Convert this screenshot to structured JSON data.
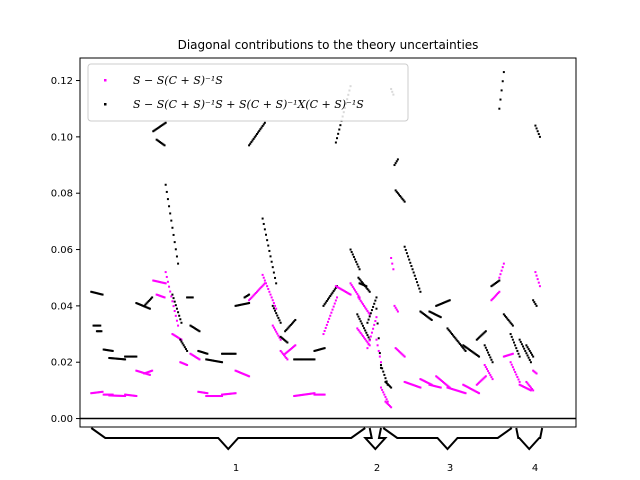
{
  "chart_data": {
    "type": "scatter",
    "title": "Diagonal contributions to the theory uncertainties",
    "xlabel": "",
    "ylabel": "",
    "ylim": [
      -0.003,
      0.128
    ],
    "xlim": [
      -10,
      430
    ],
    "yticks": [
      "0.00",
      "0.02",
      "0.04",
      "0.06",
      "0.08",
      "0.10",
      "0.12"
    ],
    "ytick_values": [
      0,
      0.02,
      0.04,
      0.06,
      0.08,
      0.1,
      0.12
    ],
    "grid": false,
    "legend_position": "top-left",
    "legend": [
      {
        "label": "S − S(C + S)⁻¹S",
        "color": "#ff00ff"
      },
      {
        "label": "S − S(C + S)⁻¹S + S(C + S)⁻¹X(C + S)⁻¹S",
        "color": "#000000"
      }
    ],
    "colors": {
      "magenta": "#ff00ff",
      "black": "#000000"
    },
    "groups": [
      {
        "label": "1",
        "start": 0,
        "end": 243
      },
      {
        "label": "2",
        "start": 247,
        "end": 257
      },
      {
        "label": "3",
        "start": 259,
        "end": 373
      },
      {
        "label": "4",
        "start": 377,
        "end": 400
      }
    ],
    "segments": [
      {
        "x0": 0,
        "x1": 10,
        "black": [
          0.045,
          0.044
        ],
        "magenta": [
          0.009,
          0.0095
        ]
      },
      {
        "x0": 2,
        "x1": 8,
        "black": [
          0.033,
          0.033
        ],
        "magenta": null
      },
      {
        "x0": 5,
        "x1": 9,
        "black": [
          0.031,
          0.031
        ],
        "magenta": null
      },
      {
        "x0": 11,
        "x1": 19,
        "black": [
          0.0245,
          0.024
        ],
        "magenta": [
          0.0085,
          0.0085
        ]
      },
      {
        "x0": 16,
        "x1": 30,
        "black": [
          0.0215,
          0.021
        ],
        "magenta": [
          0.0082,
          0.008
        ]
      },
      {
        "x0": 30,
        "x1": 40,
        "black": [
          0.022,
          0.022
        ],
        "magenta": [
          0.0085,
          0.008
        ]
      },
      {
        "x0": 40,
        "x1": 52,
        "black": [
          0.041,
          0.039
        ],
        "magenta": [
          0.017,
          0.0155
        ]
      },
      {
        "x0": 47,
        "x1": 54,
        "black": [
          0.04,
          0.043
        ],
        "magenta": [
          0.016,
          0.017
        ]
      },
      {
        "x0": 55,
        "x1": 66,
        "black": [
          0.102,
          0.105
        ],
        "magenta": [
          0.049,
          0.048
        ]
      },
      {
        "x0": 58,
        "x1": 65,
        "black": [
          0.099,
          0.097
        ],
        "magenta": [
          0.044,
          0.043
        ]
      },
      {
        "x0": 66,
        "x1": 77,
        "black": [
          0.083,
          0.055
        ],
        "magenta": [
          0.052,
          0.033
        ]
      },
      {
        "x0": 72,
        "x1": 80,
        "black": [
          0.044,
          0.034
        ],
        "magenta": [
          0.03,
          0.028
        ]
      },
      {
        "x0": 79,
        "x1": 85,
        "black": [
          0.028,
          0.024
        ],
        "magenta": [
          0.02,
          0.019
        ]
      },
      {
        "x0": 85,
        "x1": 90,
        "black": [
          0.043,
          0.043
        ],
        "magenta": null
      },
      {
        "x0": 88,
        "x1": 96,
        "black": [
          0.033,
          0.031
        ],
        "magenta": [
          0.023,
          0.021
        ]
      },
      {
        "x0": 95,
        "x1": 103,
        "black": [
          0.024,
          0.023
        ],
        "magenta": [
          0.0095,
          0.009
        ]
      },
      {
        "x0": 102,
        "x1": 116,
        "black": [
          0.021,
          0.02
        ],
        "magenta": [
          0.008,
          0.008
        ]
      },
      {
        "x0": 116,
        "x1": 128,
        "black": [
          0.023,
          0.023
        ],
        "magenta": [
          0.0085,
          0.009
        ]
      },
      {
        "x0": 128,
        "x1": 140,
        "black": [
          0.04,
          0.041
        ],
        "magenta": [
          0.017,
          0.015
        ]
      },
      {
        "x0": 136,
        "x1": 140,
        "black": [
          0.043,
          0.044
        ],
        "magenta": null
      },
      {
        "x0": 140,
        "x1": 154,
        "black": [
          0.097,
          0.105
        ],
        "magenta": [
          0.042,
          0.048
        ]
      },
      {
        "x0": 152,
        "x1": 164,
        "black": [
          0.071,
          0.048
        ],
        "magenta": [
          0.051,
          0.039
        ]
      },
      {
        "x0": 161,
        "x1": 168,
        "black": [
          0.04,
          0.034
        ],
        "magenta": [
          0.033,
          0.028
        ]
      },
      {
        "x0": 168,
        "x1": 174,
        "black": [
          0.029,
          0.027
        ],
        "magenta": [
          0.024,
          0.021
        ]
      },
      {
        "x0": 172,
        "x1": 181,
        "black": [
          0.031,
          0.035
        ],
        "magenta": [
          0.023,
          0.026
        ]
      },
      {
        "x0": 180,
        "x1": 198,
        "black": [
          0.021,
          0.021
        ],
        "magenta": [
          0.008,
          0.009
        ]
      },
      {
        "x0": 198,
        "x1": 207,
        "black": [
          0.024,
          0.025
        ],
        "magenta": [
          0.0085,
          0.0085
        ]
      },
      {
        "x0": 206,
        "x1": 218,
        "black": [
          0.04,
          0.047
        ],
        "magenta": [
          0.03,
          0.043
        ]
      },
      {
        "x0": 217,
        "x1": 230,
        "black": [
          0.098,
          0.118
        ],
        "magenta": [
          0.047,
          0.044
        ]
      },
      {
        "x0": 230,
        "x1": 238,
        "black": [
          0.06,
          0.053
        ],
        "magenta": [
          0.048,
          0.043
        ]
      },
      {
        "x0": 237,
        "x1": 247,
        "black": [
          0.05,
          0.045
        ],
        "magenta": [
          0.043,
          0.037
        ]
      },
      {
        "x0": 238,
        "x1": 244,
        "black": [
          0.048,
          0.047
        ],
        "magenta": null
      },
      {
        "x0": 236,
        "x1": 247,
        "black": [
          0.037,
          0.028
        ],
        "magenta": [
          0.032,
          0.026
        ]
      },
      {
        "x0": 245,
        "x1": 253,
        "black": [
          0.034,
          0.043
        ],
        "magenta": [
          0.025,
          0.036
        ]
      },
      {
        "x0": 253,
        "x1": 257,
        "black": [
          0.039,
          0.018
        ],
        "magenta": [
          0.028,
          0.02
        ]
      },
      {
        "x0": 257,
        "x1": 263,
        "black": [
          0.019,
          0.012
        ],
        "magenta": [
          0.011,
          0.006
        ]
      },
      {
        "x0": 261,
        "x1": 266,
        "black": [
          0.013,
          0.011
        ],
        "magenta": [
          0.006,
          0.004
        ]
      },
      {
        "x0": 266,
        "x1": 268,
        "black": [
          0.117,
          0.115
        ],
        "magenta": [
          0.057,
          0.053
        ]
      },
      {
        "x0": 269,
        "x1": 272,
        "black": [
          0.09,
          0.092
        ],
        "magenta": [
          0.04,
          0.038
        ]
      },
      {
        "x0": 270,
        "x1": 278,
        "black": [
          0.081,
          0.077
        ],
        "magenta": [
          0.025,
          0.022
        ]
      },
      {
        "x0": 278,
        "x1": 292,
        "black": [
          0.061,
          0.045
        ],
        "magenta": [
          0.013,
          0.011
        ]
      },
      {
        "x0": 292,
        "x1": 302,
        "black": [
          0.038,
          0.035
        ],
        "magenta": [
          0.014,
          0.012
        ]
      },
      {
        "x0": 300,
        "x1": 310,
        "black": [
          0.038,
          0.036
        ],
        "magenta": [
          0.012,
          0.011
        ]
      },
      {
        "x0": 306,
        "x1": 318,
        "black": [
          0.04,
          0.042
        ],
        "magenta": [
          0.015,
          0.011
        ]
      },
      {
        "x0": 316,
        "x1": 332,
        "black": [
          0.032,
          0.024
        ],
        "magenta": [
          0.011,
          0.009
        ]
      },
      {
        "x0": 330,
        "x1": 344,
        "black": [
          0.026,
          0.022
        ],
        "magenta": [
          0.012,
          0.009
        ]
      },
      {
        "x0": 342,
        "x1": 350,
        "black": [
          0.028,
          0.031
        ],
        "magenta": [
          0.012,
          0.015
        ]
      },
      {
        "x0": 349,
        "x1": 356,
        "black": [
          0.026,
          0.02
        ],
        "magenta": [
          0.019,
          0.014
        ]
      },
      {
        "x0": 355,
        "x1": 362,
        "black": [
          0.047,
          0.049
        ],
        "magenta": [
          0.042,
          0.045
        ]
      },
      {
        "x0": 362,
        "x1": 366,
        "black": [
          0.11,
          0.123
        ],
        "magenta": [
          0.05,
          0.055
        ]
      },
      {
        "x0": 366,
        "x1": 374,
        "black": [
          0.037,
          0.033
        ],
        "magenta": [
          0.022,
          0.023
        ]
      },
      {
        "x0": 372,
        "x1": 380,
        "black": [
          0.03,
          0.022
        ],
        "magenta": [
          0.02,
          0.013
        ]
      },
      {
        "x0": 380,
        "x1": 390,
        "black": [
          0.028,
          0.02
        ],
        "magenta": [
          0.012,
          0.01
        ]
      },
      {
        "x0": 386,
        "x1": 392,
        "black": [
          0.026,
          0.022
        ],
        "magenta": [
          0.013,
          0.01
        ]
      },
      {
        "x0": 392,
        "x1": 395,
        "black": [
          0.042,
          0.04
        ],
        "magenta": [
          0.017,
          0.016
        ]
      },
      {
        "x0": 394,
        "x1": 398,
        "black": [
          0.104,
          0.1
        ],
        "magenta": [
          0.052,
          0.047
        ]
      }
    ]
  }
}
